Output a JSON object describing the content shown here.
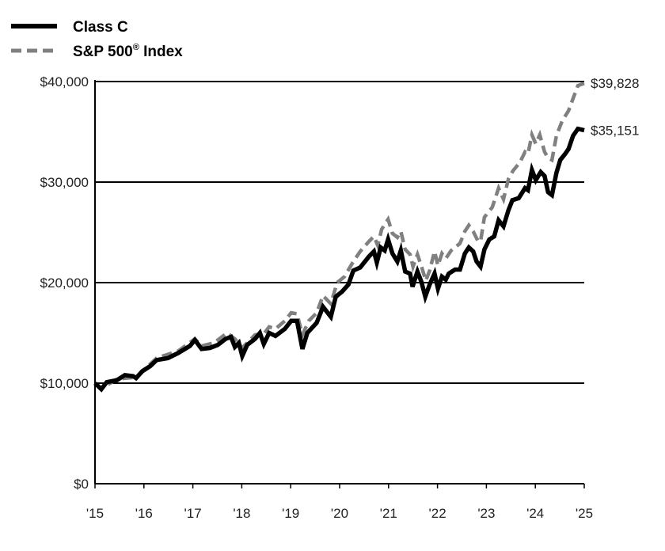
{
  "chart_data": {
    "type": "line",
    "title": "",
    "xlabel": "",
    "ylabel": "",
    "xlim": [
      2015,
      2025
    ],
    "ylim": [
      0,
      40000
    ],
    "grid": "horizontal",
    "legend_position": "top-left",
    "x_tick_labels": [
      "'15",
      "'16",
      "'17",
      "'18",
      "'19",
      "'20",
      "'21",
      "'22",
      "'23",
      "'24",
      "'25"
    ],
    "y_tick_labels": [
      "$0",
      "$10,000",
      "$20,000",
      "$30,000",
      "$40,000"
    ],
    "y_ticks": [
      0,
      10000,
      20000,
      30000,
      40000
    ],
    "series": [
      {
        "name": "Class C",
        "style": "solid",
        "color": "#000000",
        "end_label": "$35,151",
        "x": [
          2015.0,
          2015.13,
          2015.24,
          2015.45,
          2015.61,
          2015.78,
          2015.84,
          2015.97,
          2016.13,
          2016.26,
          2016.49,
          2016.7,
          2016.94,
          2017.04,
          2017.18,
          2017.35,
          2017.51,
          2017.67,
          2017.78,
          2017.86,
          2017.94,
          2018.01,
          2018.11,
          2018.27,
          2018.37,
          2018.45,
          2018.56,
          2018.69,
          2018.88,
          2019.01,
          2019.13,
          2019.24,
          2019.34,
          2019.53,
          2019.66,
          2019.82,
          2019.92,
          2020.05,
          2020.18,
          2020.28,
          2020.42,
          2020.6,
          2020.7,
          2020.76,
          2020.84,
          2020.92,
          2020.99,
          2021.08,
          2021.18,
          2021.25,
          2021.34,
          2021.44,
          2021.49,
          2021.59,
          2021.67,
          2021.75,
          2021.84,
          2021.94,
          2022.01,
          2022.09,
          2022.17,
          2022.23,
          2022.36,
          2022.46,
          2022.56,
          2022.64,
          2022.73,
          2022.8,
          2022.88,
          2022.96,
          2023.06,
          2023.16,
          2023.25,
          2023.35,
          2023.45,
          2023.53,
          2023.66,
          2023.79,
          2023.85,
          2023.93,
          2024.01,
          2024.11,
          2024.19,
          2024.26,
          2024.34,
          2024.43,
          2024.51,
          2024.61,
          2024.68,
          2024.77,
          2024.87,
          2025.0
        ],
        "y": [
          10000,
          9400,
          10100,
          10300,
          10800,
          10700,
          10500,
          11200,
          11700,
          12300,
          12500,
          13000,
          13700,
          14300,
          13400,
          13500,
          13800,
          14400,
          14600,
          13600,
          14000,
          12700,
          13800,
          14400,
          15000,
          13900,
          15000,
          14700,
          15400,
          16200,
          16200,
          13400,
          15000,
          16000,
          17600,
          16600,
          18600,
          19100,
          19800,
          21200,
          21500,
          22600,
          23100,
          22000,
          23500,
          23200,
          24300,
          22900,
          22100,
          23200,
          21100,
          20900,
          19600,
          21100,
          20100,
          18600,
          19800,
          20900,
          19400,
          20600,
          20300,
          20900,
          21300,
          21300,
          22900,
          23500,
          23100,
          22100,
          21600,
          23300,
          24300,
          24600,
          26200,
          25600,
          27200,
          28200,
          28400,
          29400,
          29200,
          31200,
          30200,
          31000,
          30600,
          29000,
          28700,
          30900,
          32200,
          32800,
          33300,
          34600,
          35300,
          35151
        ]
      },
      {
        "name": "S&P 500® Index",
        "style": "dashed",
        "color": "#808080",
        "end_label": "$39,828",
        "x": [
          2015.0,
          2015.13,
          2015.45,
          2015.84,
          2016.26,
          2016.7,
          2017.04,
          2017.18,
          2017.43,
          2017.7,
          2017.86,
          2018.01,
          2018.27,
          2018.45,
          2018.56,
          2018.69,
          2018.88,
          2019.01,
          2019.13,
          2019.24,
          2019.37,
          2019.53,
          2019.66,
          2019.82,
          2019.95,
          2020.1,
          2020.28,
          2020.42,
          2020.6,
          2020.7,
          2020.78,
          2020.86,
          2020.99,
          2021.08,
          2021.18,
          2021.25,
          2021.34,
          2021.44,
          2021.5,
          2021.59,
          2021.68,
          2021.76,
          2021.84,
          2021.94,
          2022.01,
          2022.09,
          2022.17,
          2022.28,
          2022.46,
          2022.56,
          2022.64,
          2022.73,
          2022.83,
          2022.88,
          2022.96,
          2023.12,
          2023.25,
          2023.35,
          2023.45,
          2023.54,
          2023.69,
          2023.79,
          2023.85,
          2023.93,
          2024.01,
          2024.09,
          2024.19,
          2024.26,
          2024.34,
          2024.43,
          2024.55,
          2024.68,
          2024.77,
          2024.87,
          2025.0
        ],
        "y": [
          10000,
          9500,
          10400,
          10600,
          12500,
          13200,
          14400,
          13700,
          14000,
          15000,
          14400,
          13500,
          14800,
          14900,
          15600,
          15400,
          16200,
          17000,
          16900,
          14800,
          16200,
          17000,
          18700,
          17900,
          20000,
          20600,
          22100,
          23100,
          24100,
          24600,
          23700,
          25300,
          26300,
          24900,
          24500,
          25100,
          23300,
          22800,
          21600,
          22800,
          21500,
          20200,
          21200,
          23100,
          21700,
          22900,
          22400,
          23200,
          23900,
          25100,
          25700,
          25100,
          24100,
          24100,
          26500,
          27500,
          29400,
          28300,
          30300,
          31100,
          32000,
          33000,
          32800,
          34700,
          33800,
          34700,
          33000,
          32400,
          32200,
          34600,
          36100,
          37100,
          38300,
          39600,
          39828
        ]
      }
    ]
  }
}
